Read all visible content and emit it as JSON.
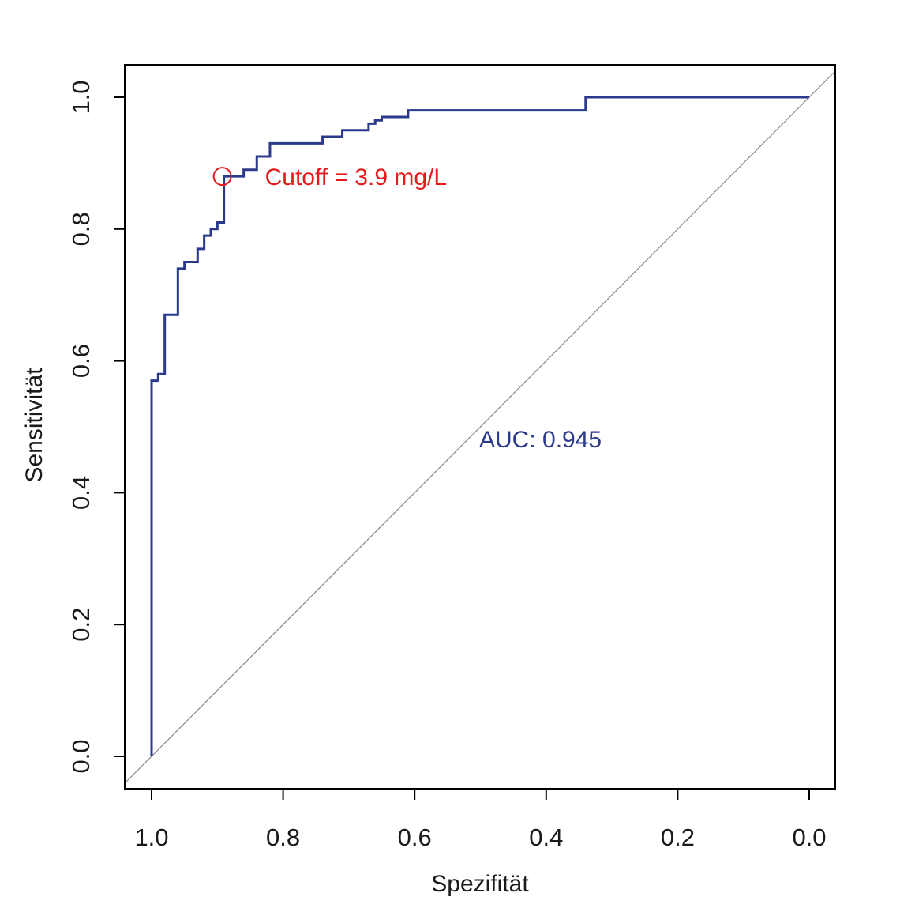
{
  "chart_data": {
    "type": "line",
    "xlabel": "Spezifität",
    "ylabel": "Sensitivität",
    "x_reversed": true,
    "xlim": [
      1.0,
      0.0
    ],
    "ylim": [
      0.0,
      1.0
    ],
    "x_ticks": [
      "1.0",
      "0.8",
      "0.6",
      "0.4",
      "0.2",
      "0.0"
    ],
    "y_ticks": [
      "0.0",
      "0.2",
      "0.4",
      "0.6",
      "0.8",
      "1.0"
    ],
    "grid": false,
    "series": [
      {
        "color": "#2b3a8c",
        "points": [
          [
            1.0,
            0.0
          ],
          [
            1.0,
            0.57
          ],
          [
            0.99,
            0.57
          ],
          [
            0.99,
            0.58
          ],
          [
            0.98,
            0.58
          ],
          [
            0.98,
            0.67
          ],
          [
            0.96,
            0.67
          ],
          [
            0.96,
            0.74
          ],
          [
            0.95,
            0.74
          ],
          [
            0.95,
            0.75
          ],
          [
            0.93,
            0.75
          ],
          [
            0.93,
            0.77
          ],
          [
            0.92,
            0.77
          ],
          [
            0.92,
            0.79
          ],
          [
            0.91,
            0.79
          ],
          [
            0.91,
            0.8
          ],
          [
            0.9,
            0.8
          ],
          [
            0.9,
            0.81
          ],
          [
            0.89,
            0.81
          ],
          [
            0.89,
            0.88
          ],
          [
            0.86,
            0.88
          ],
          [
            0.86,
            0.89
          ],
          [
            0.84,
            0.89
          ],
          [
            0.84,
            0.91
          ],
          [
            0.82,
            0.91
          ],
          [
            0.82,
            0.93
          ],
          [
            0.74,
            0.93
          ],
          [
            0.74,
            0.94
          ],
          [
            0.71,
            0.94
          ],
          [
            0.71,
            0.95
          ],
          [
            0.67,
            0.95
          ],
          [
            0.67,
            0.96
          ],
          [
            0.66,
            0.96
          ],
          [
            0.66,
            0.965
          ],
          [
            0.65,
            0.965
          ],
          [
            0.65,
            0.97
          ],
          [
            0.61,
            0.97
          ],
          [
            0.61,
            0.98
          ],
          [
            0.34,
            0.98
          ],
          [
            0.34,
            1.0
          ],
          [
            0.0,
            1.0
          ]
        ]
      }
    ],
    "reference_line": {
      "from": [
        1.0,
        0.0
      ],
      "to": [
        0.0,
        1.0
      ],
      "color": "#888888"
    },
    "cutoff_point": {
      "x": 0.89,
      "y": 0.88,
      "label": "Cutoff = 3.9 mg/L",
      "color": "#e41a1c"
    },
    "auc_annotation": {
      "text": "AUC: 0.945",
      "x": 0.5,
      "y": 0.48,
      "color": "#2b3a8c"
    }
  }
}
